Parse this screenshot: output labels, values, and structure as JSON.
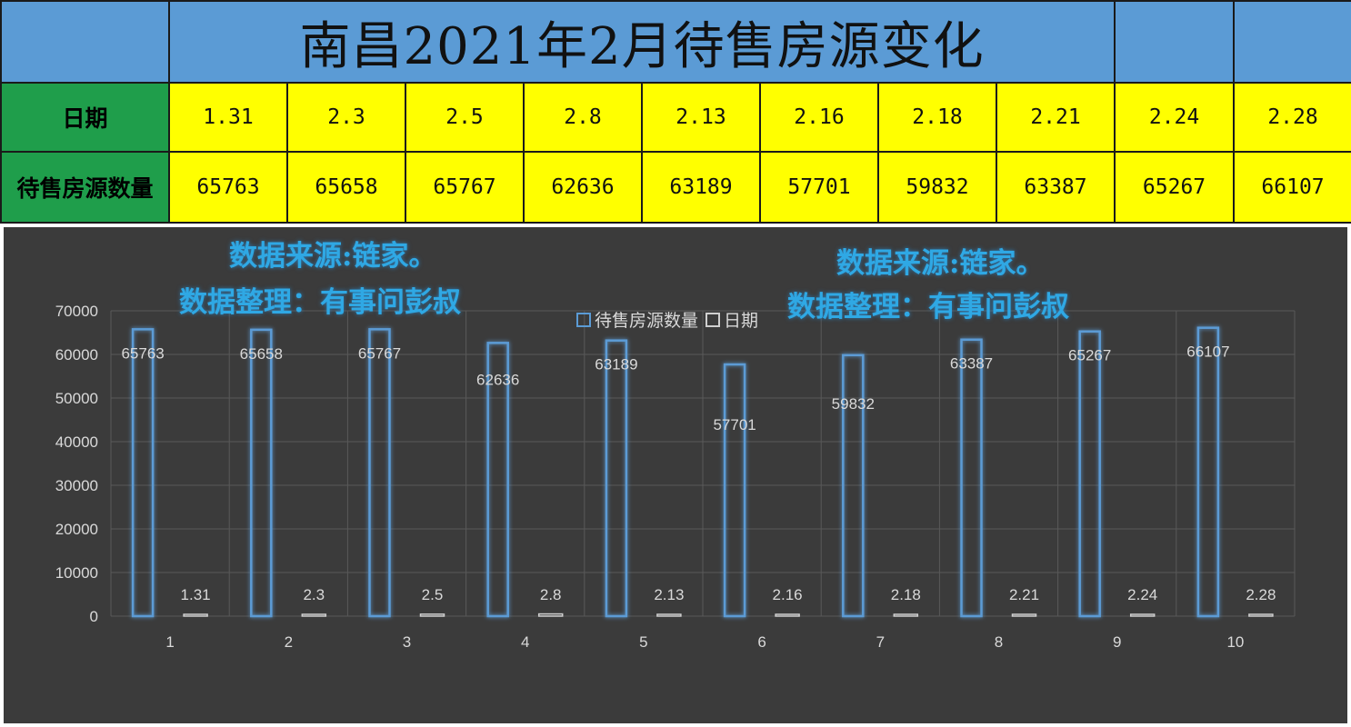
{
  "table": {
    "title": "南昌2021年2月待售房源变化",
    "date_header": "日期",
    "count_header": "待售房源数量",
    "dates": [
      "1.31",
      "2.3",
      "2.5",
      "2.8",
      "2.13",
      "2.16",
      "2.18",
      "2.21",
      "2.24",
      "2.28"
    ],
    "counts": [
      "65763",
      "65658",
      "65767",
      "62636",
      "63189",
      "57701",
      "59832",
      "63387",
      "65267",
      "66107"
    ]
  },
  "annotations": {
    "left_line1": "数据来源:链家。",
    "left_line2": "数据整理：有事问彭叔",
    "right_line1": "数据来源:链家。",
    "right_line2": "数据整理：有事问彭叔"
  },
  "colors": {
    "title_bg": "#5b9bd5",
    "header_bg": "#1f9e4b",
    "value_bg": "#ffff00",
    "panel_bg": "#3b3b3b",
    "bar_outline": "#5b9bd5",
    "annotation_text": "#2fa8e4"
  },
  "chart_data": {
    "type": "bar",
    "categories": [
      "1",
      "2",
      "3",
      "4",
      "5",
      "6",
      "7",
      "8",
      "9",
      "10"
    ],
    "series": [
      {
        "name": "待售房源数量",
        "values": [
          65763,
          65658,
          65767,
          62636,
          63189,
          57701,
          59832,
          63387,
          65267,
          66107
        ],
        "labels": [
          "65763",
          "65658",
          "65767",
          "62636",
          "63189",
          "57701",
          "59832",
          "63387",
          "65267",
          "66107"
        ]
      },
      {
        "name": "日期",
        "values": [
          1.31,
          2.3,
          2.5,
          2.8,
          2.13,
          2.16,
          2.18,
          2.21,
          2.24,
          2.28
        ],
        "labels": [
          "1.31",
          "2.3",
          "2.5",
          "2.8",
          "2.13",
          "2.16",
          "2.18",
          "2.21",
          "2.24",
          "2.28"
        ]
      }
    ],
    "yticks": [
      "0",
      "10000",
      "20000",
      "30000",
      "40000",
      "50000",
      "60000",
      "70000"
    ],
    "ylim": [
      0,
      70000
    ],
    "grid": true,
    "legend_position": "top-center"
  }
}
